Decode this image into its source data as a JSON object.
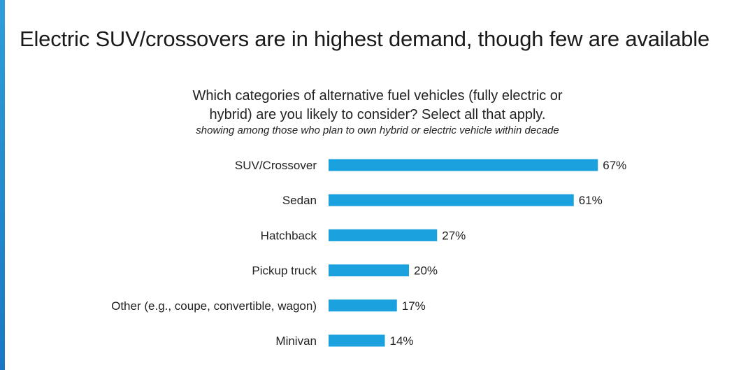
{
  "headline": "Electric SUV/crossovers are in highest demand, though few are available",
  "colors": {
    "bar": "#1ba1dd",
    "accent": "#1f8fd0"
  },
  "chart_data": {
    "type": "bar",
    "orientation": "horizontal",
    "title_line1": "Which categories of alternative fuel vehicles (fully electric or",
    "title_line2": "hybrid) are you likely to consider? Select all that apply.",
    "subtitle": "showing among those who plan to own hybrid or electric vehicle within decade",
    "categories": [
      "SUV/Crossover",
      "Sedan",
      "Hatchback",
      "Pickup truck",
      "Other (e.g., coupe, convertible, wagon)",
      "Minivan"
    ],
    "values": [
      67,
      61,
      27,
      20,
      17,
      14
    ],
    "value_labels": [
      "67%",
      "61%",
      "27%",
      "20%",
      "17%",
      "14%"
    ],
    "unit": "%",
    "xlim": [
      0,
      100
    ],
    "grid": false,
    "legend": "none"
  }
}
